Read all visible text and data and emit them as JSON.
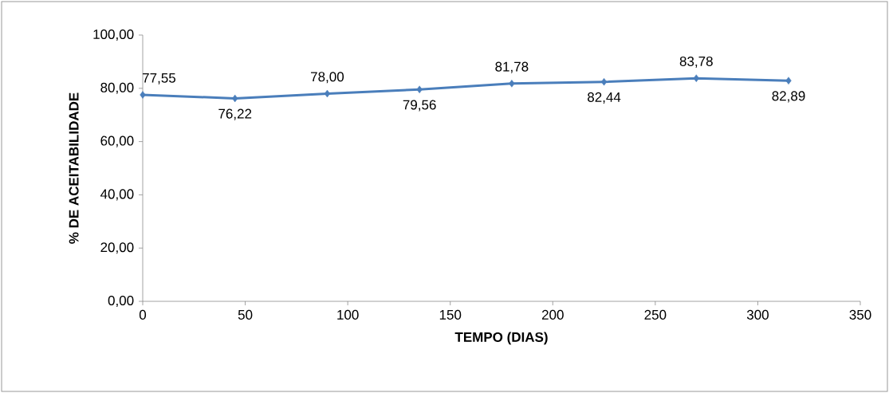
{
  "chart_data": {
    "type": "line",
    "xlabel": "TEMPO (DIAS)",
    "ylabel": "% DE ACEITABILIDADE",
    "x": [
      0,
      45,
      90,
      135,
      180,
      225,
      270,
      315
    ],
    "series": [
      {
        "color": "#4a7ebb",
        "values": [
          77.55,
          76.22,
          78.0,
          79.56,
          81.78,
          82.44,
          83.78,
          82.89
        ],
        "value_labels": [
          "77,55",
          "76,22",
          "78,00",
          "79,56",
          "81,78",
          "82,44",
          "83,78",
          "82,89"
        ]
      }
    ],
    "xlim": [
      0,
      350
    ],
    "xticks": [
      0,
      50,
      100,
      150,
      200,
      250,
      300,
      350
    ],
    "ylim": [
      0,
      100
    ],
    "yticks": [
      {
        "value": 0,
        "label": "0,00"
      },
      {
        "value": 20,
        "label": "20,00"
      },
      {
        "value": 40,
        "label": "40,00"
      },
      {
        "value": 60,
        "label": "60,00"
      },
      {
        "value": 80,
        "label": "80,00"
      },
      {
        "value": 100,
        "label": "100,00"
      }
    ],
    "marker": "diamond",
    "line_style": "solid"
  }
}
